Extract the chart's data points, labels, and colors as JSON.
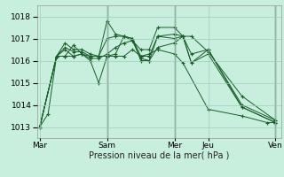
{
  "xlabel": "Pression niveau de la mer( hPa )",
  "background_color": "#c8eede",
  "grid_color": "#a0ccbb",
  "line_color": "#1a5c2a",
  "vline_color": "#667766",
  "ylim": [
    1012.5,
    1018.5
  ],
  "yticks": [
    1013,
    1014,
    1015,
    1016,
    1017,
    1018
  ],
  "x_day_ticks": [
    0,
    48,
    96,
    120,
    168
  ],
  "x_day_labels": [
    "Mar",
    "Sam",
    "Mer",
    "Jeu",
    "Ven"
  ],
  "xlim": [
    -2,
    172
  ],
  "series": [
    {
      "x": [
        0,
        6,
        12,
        18,
        24,
        30,
        36,
        48,
        54,
        60,
        66,
        72,
        78,
        84,
        96,
        102,
        120,
        144,
        162,
        168
      ],
      "y": [
        1013.0,
        1013.6,
        1016.2,
        1016.2,
        1016.7,
        1016.3,
        1016.2,
        1016.2,
        1016.2,
        1016.2,
        1016.5,
        1016.2,
        1016.3,
        1016.5,
        1016.3,
        1015.9,
        1013.8,
        1013.5,
        1013.2,
        1013.2
      ]
    },
    {
      "x": [
        0,
        12,
        18,
        24,
        30,
        36,
        42,
        48,
        54,
        60,
        66,
        72,
        78,
        84,
        96,
        102,
        108,
        120,
        144,
        168
      ],
      "y": [
        1013.0,
        1016.2,
        1016.5,
        1016.2,
        1016.3,
        1016.0,
        1015.0,
        1016.2,
        1016.3,
        1017.1,
        1017.0,
        1016.0,
        1016.0,
        1017.1,
        1017.0,
        1017.1,
        1015.9,
        1016.3,
        1013.9,
        1013.2
      ]
    },
    {
      "x": [
        0,
        12,
        18,
        24,
        30,
        36,
        42,
        48,
        54,
        60,
        66,
        72,
        78,
        84,
        96,
        102,
        108,
        120,
        144,
        168
      ],
      "y": [
        1013.0,
        1016.2,
        1016.8,
        1016.5,
        1016.5,
        1016.3,
        1016.2,
        1017.8,
        1017.2,
        1017.1,
        1016.9,
        1016.5,
        1016.5,
        1017.5,
        1017.5,
        1017.1,
        1017.1,
        1016.4,
        1014.4,
        1013.3
      ]
    },
    {
      "x": [
        0,
        12,
        18,
        24,
        30,
        36,
        42,
        48,
        54,
        60,
        66,
        72,
        78,
        84,
        96,
        102,
        108,
        120,
        144,
        168
      ],
      "y": [
        1013.0,
        1016.2,
        1016.6,
        1016.4,
        1016.4,
        1016.2,
        1016.2,
        1017.0,
        1017.1,
        1017.1,
        1017.0,
        1016.2,
        1016.2,
        1017.1,
        1017.2,
        1017.1,
        1016.3,
        1016.5,
        1014.0,
        1013.3
      ]
    },
    {
      "x": [
        0,
        12,
        18,
        24,
        30,
        36,
        42,
        48,
        54,
        60,
        66,
        72,
        78,
        84,
        96,
        102,
        108,
        120,
        144,
        168
      ],
      "y": [
        1013.0,
        1016.2,
        1016.2,
        1016.2,
        1016.3,
        1016.1,
        1016.1,
        1016.3,
        1016.6,
        1016.8,
        1016.9,
        1016.1,
        1016.0,
        1016.6,
        1016.8,
        1017.1,
        1015.9,
        1016.5,
        1013.9,
        1013.2
      ]
    }
  ],
  "vline_positions": [
    48,
    96,
    168
  ],
  "figsize": [
    3.2,
    2.0
  ],
  "dpi": 100
}
